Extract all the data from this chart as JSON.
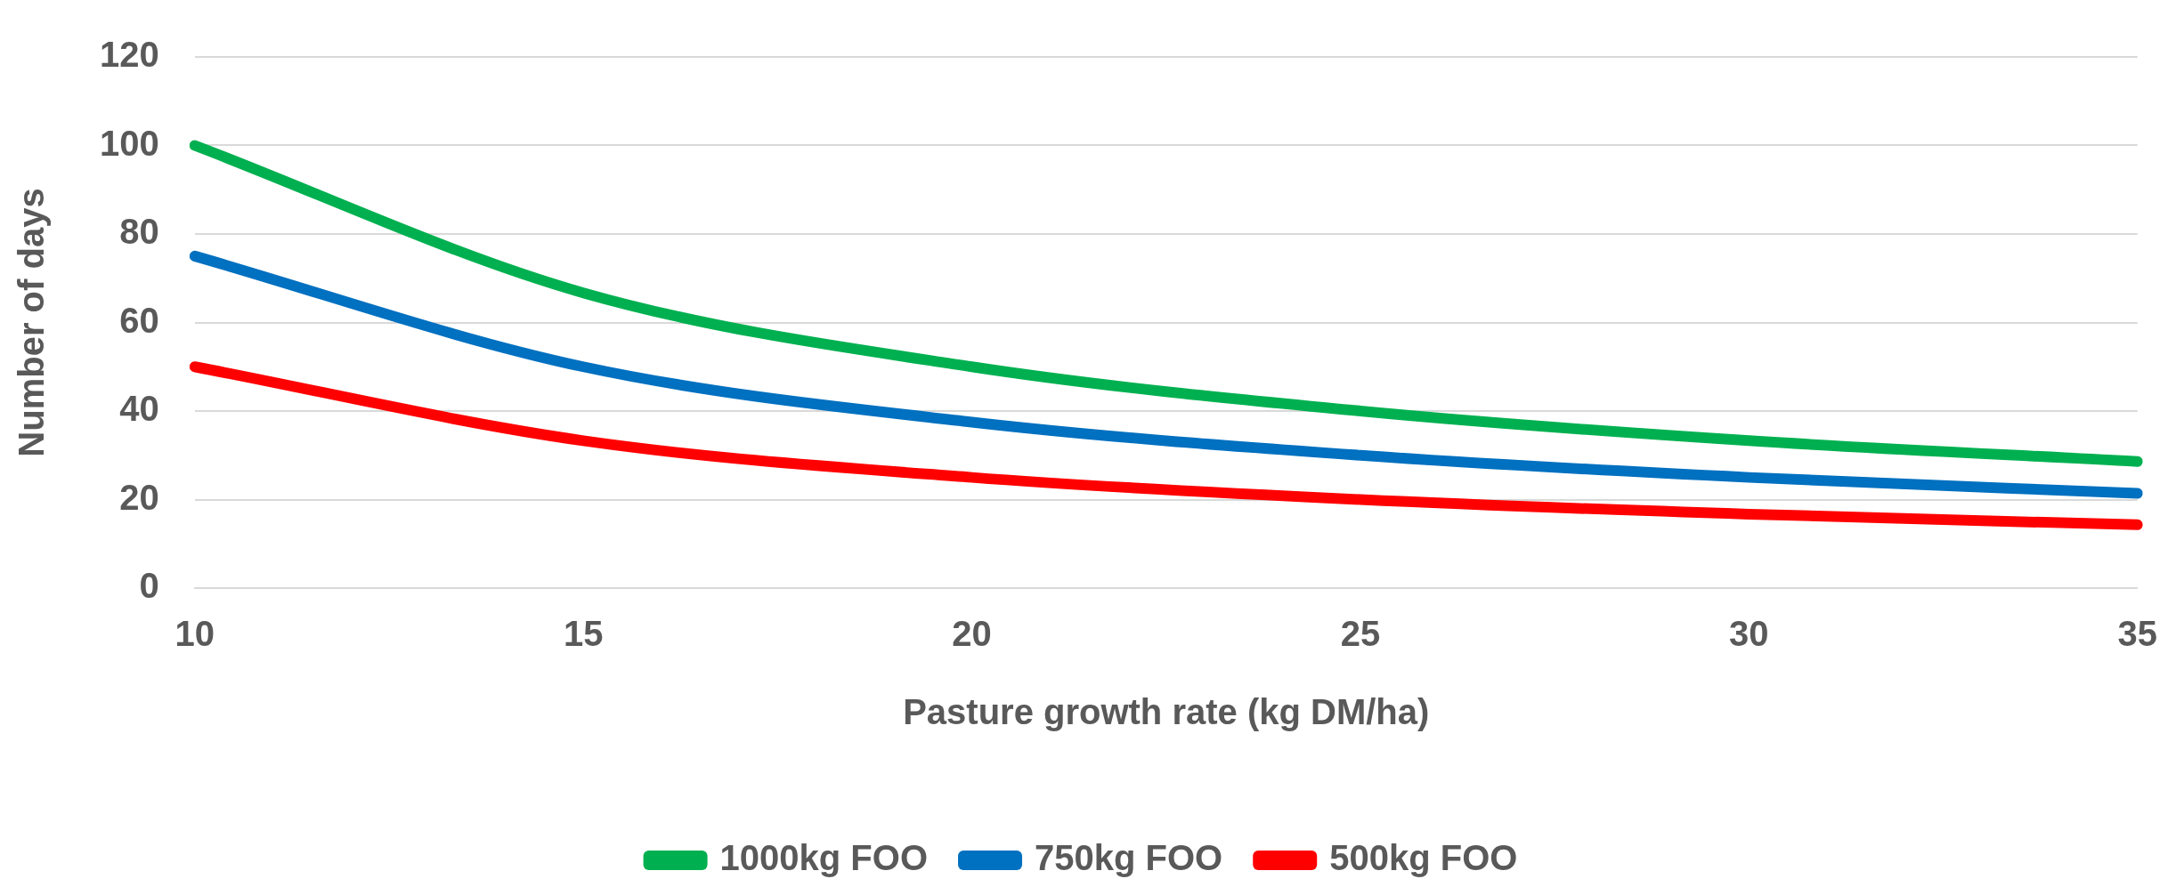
{
  "chart_data": {
    "type": "line",
    "xlabel": "Pasture growth rate (kg DM/ha)",
    "ylabel": "Number of days",
    "categories": [
      "10",
      "15",
      "20",
      "25",
      "30",
      "35"
    ],
    "series": [
      {
        "name": "1000kg FOO",
        "color": "#00b050",
        "values": [
          100,
          66.7,
          50,
          40,
          33.3,
          28.6
        ]
      },
      {
        "name": "750kg FOO",
        "color": "#0070c0",
        "values": [
          75,
          50,
          37.5,
          30,
          25,
          21.4
        ]
      },
      {
        "name": "500kg FOO",
        "color": "#ff0000",
        "values": [
          50,
          33.3,
          25,
          20,
          16.7,
          14.3
        ]
      }
    ],
    "ylim": [
      0,
      120
    ],
    "yticks": [
      0,
      20,
      40,
      60,
      80,
      100,
      120
    ],
    "grid": "y",
    "legend": "bottom",
    "marker": "none",
    "line_style": "solid"
  }
}
